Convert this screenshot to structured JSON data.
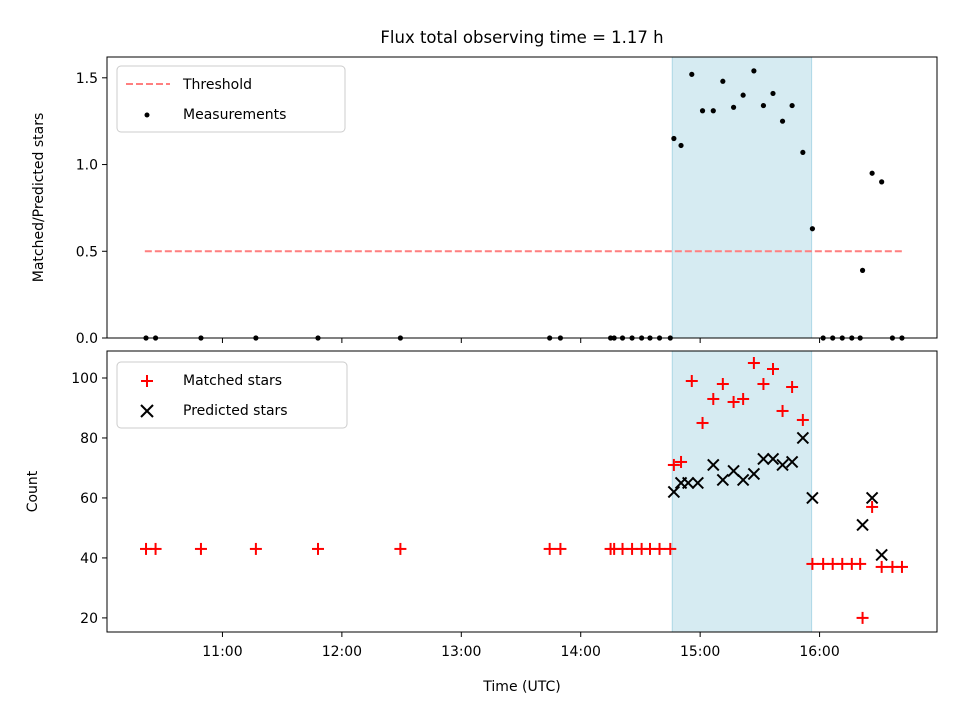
{
  "chart_data": {
    "type": "scatter",
    "title": "Flux total observing time = 1.17 h",
    "xlabel": "Time (UTC)",
    "xlim": [
      10.0333,
      16.9833
    ],
    "x_ticks": [
      {
        "value": 11,
        "label": "11:00"
      },
      {
        "value": 12,
        "label": "12:00"
      },
      {
        "value": 13,
        "label": "13:00"
      },
      {
        "value": 14,
        "label": "14:00"
      },
      {
        "value": 15,
        "label": "15:00"
      },
      {
        "value": 16,
        "label": "16:00"
      }
    ],
    "highlight_span": {
      "x0": 14.7667,
      "x1": 15.9333,
      "color": "#add8e6"
    },
    "top_panel": {
      "ylabel": "Matched/Predicted stars",
      "ylim": [
        0,
        1.62
      ],
      "y_ticks": [
        {
          "value": 0.0,
          "label": "0.0"
        },
        {
          "value": 0.5,
          "label": "0.5"
        },
        {
          "value": 1.0,
          "label": "1.0"
        },
        {
          "value": 1.5,
          "label": "1.5"
        }
      ],
      "legend": {
        "location": "top-left",
        "entries": [
          "Threshold",
          "Measurements"
        ]
      },
      "threshold": {
        "name": "Threshold",
        "value": 0.5,
        "x_range": [
          10.35,
          16.7
        ],
        "color": "#ff7f7f"
      },
      "measurements": {
        "name": "Measurements",
        "color": "#000000",
        "x": [
          10.36,
          10.44,
          10.82,
          11.28,
          11.8,
          12.49,
          13.74,
          13.83,
          14.25,
          14.28,
          14.35,
          14.43,
          14.51,
          14.58,
          14.66,
          14.75,
          14.78,
          14.84,
          14.93,
          15.02,
          15.11,
          15.19,
          15.28,
          15.36,
          15.45,
          15.53,
          15.61,
          15.69,
          15.77,
          15.86,
          15.94,
          16.03,
          16.11,
          16.19,
          16.27,
          16.34,
          16.36,
          16.44,
          16.52,
          16.61,
          16.69
        ],
        "y": [
          0,
          0,
          0,
          0,
          0,
          0,
          0,
          0,
          0,
          0,
          0,
          0,
          0,
          0,
          0,
          0,
          1.15,
          1.11,
          1.52,
          1.31,
          1.31,
          1.48,
          1.33,
          1.4,
          1.54,
          1.34,
          1.41,
          1.25,
          1.34,
          1.07,
          0.63,
          0,
          0,
          0,
          0,
          0,
          0.39,
          0.95,
          0.9,
          0,
          0
        ]
      }
    },
    "bottom_panel": {
      "ylabel": "Count",
      "ylim": [
        15.3,
        109
      ],
      "y_ticks": [
        {
          "value": 20,
          "label": "20"
        },
        {
          "value": 40,
          "label": "40"
        },
        {
          "value": 60,
          "label": "60"
        },
        {
          "value": 80,
          "label": "80"
        },
        {
          "value": 100,
          "label": "100"
        }
      ],
      "legend": {
        "location": "top-left",
        "entries": [
          "Matched stars",
          "Predicted stars"
        ]
      },
      "series": [
        {
          "name": "Matched stars",
          "marker": "+",
          "color": "#ff0000",
          "x": [
            10.36,
            10.44,
            10.82,
            11.28,
            11.8,
            12.49,
            13.74,
            13.83,
            14.25,
            14.28,
            14.35,
            14.43,
            14.51,
            14.58,
            14.66,
            14.75,
            14.78,
            14.84,
            14.93,
            15.02,
            15.11,
            15.19,
            15.28,
            15.36,
            15.45,
            15.53,
            15.61,
            15.69,
            15.77,
            15.86,
            15.94,
            16.03,
            16.11,
            16.19,
            16.27,
            16.34,
            16.36,
            16.44,
            16.52,
            16.61,
            16.69
          ],
          "y": [
            43,
            43,
            43,
            43,
            43,
            43,
            43,
            43,
            43,
            43,
            43,
            43,
            43,
            43,
            43,
            43,
            71,
            72,
            99,
            85,
            93,
            98,
            92,
            93,
            105,
            98,
            103,
            89,
            97,
            86,
            38,
            38,
            38,
            38,
            38,
            38,
            20,
            57,
            37,
            37,
            37
          ]
        },
        {
          "name": "Predicted stars",
          "marker": "x",
          "color": "#000000",
          "x": [
            14.78,
            14.84,
            14.9,
            14.98,
            15.11,
            15.19,
            15.28,
            15.36,
            15.45,
            15.53,
            15.61,
            15.69,
            15.77,
            15.86,
            15.94,
            16.36,
            16.44,
            16.52
          ],
          "y": [
            62,
            65,
            65,
            65,
            71,
            66,
            69,
            66,
            68,
            73,
            73,
            71,
            72,
            80,
            60,
            51,
            60,
            41
          ]
        }
      ]
    }
  }
}
